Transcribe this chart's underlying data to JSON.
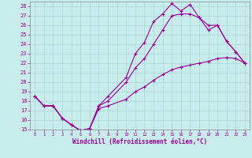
{
  "xlabel": "Windchill (Refroidissement éolien,°C)",
  "bg_color": "#c8ecec",
  "line_color": "#990099",
  "grid_color": "#b0d8d8",
  "xlim": [
    -0.5,
    23.5
  ],
  "ylim": [
    15,
    28.5
  ],
  "xticks": [
    0,
    1,
    2,
    3,
    4,
    5,
    6,
    7,
    8,
    9,
    10,
    11,
    12,
    13,
    14,
    15,
    16,
    17,
    18,
    19,
    20,
    21,
    22,
    23
  ],
  "yticks": [
    15,
    16,
    17,
    18,
    19,
    20,
    21,
    22,
    23,
    24,
    25,
    26,
    27,
    28
  ],
  "line1_x": [
    0,
    1,
    2,
    3,
    4,
    5,
    6,
    7,
    8,
    10,
    11,
    12,
    13,
    14,
    15,
    16,
    17,
    18,
    19,
    20,
    21,
    22,
    23
  ],
  "line1_y": [
    18.5,
    17.5,
    17.5,
    16.2,
    15.5,
    14.9,
    15.1,
    17.5,
    18.5,
    20.5,
    23.0,
    24.2,
    26.4,
    27.2,
    28.3,
    27.5,
    28.2,
    26.8,
    26.0,
    26.0,
    24.3,
    23.2,
    22.0
  ],
  "line2_x": [
    0,
    1,
    2,
    3,
    4,
    5,
    6,
    7,
    8,
    10,
    11,
    12,
    13,
    14,
    15,
    16,
    17,
    18,
    19,
    20,
    21,
    22,
    23
  ],
  "line2_y": [
    18.5,
    17.5,
    17.5,
    16.2,
    15.5,
    14.9,
    15.1,
    17.5,
    18.0,
    20.0,
    21.5,
    22.5,
    24.0,
    25.5,
    27.0,
    27.2,
    27.2,
    26.8,
    25.5,
    26.0,
    24.3,
    23.2,
    22.0
  ],
  "line3_x": [
    0,
    1,
    2,
    3,
    4,
    5,
    6,
    7,
    8,
    10,
    11,
    12,
    13,
    14,
    15,
    16,
    17,
    18,
    19,
    20,
    21,
    22,
    23
  ],
  "line3_y": [
    18.5,
    17.5,
    17.5,
    16.2,
    15.5,
    14.9,
    15.1,
    17.2,
    17.5,
    18.2,
    19.0,
    19.5,
    20.2,
    20.8,
    21.3,
    21.6,
    21.8,
    22.0,
    22.2,
    22.5,
    22.6,
    22.5,
    22.0
  ]
}
